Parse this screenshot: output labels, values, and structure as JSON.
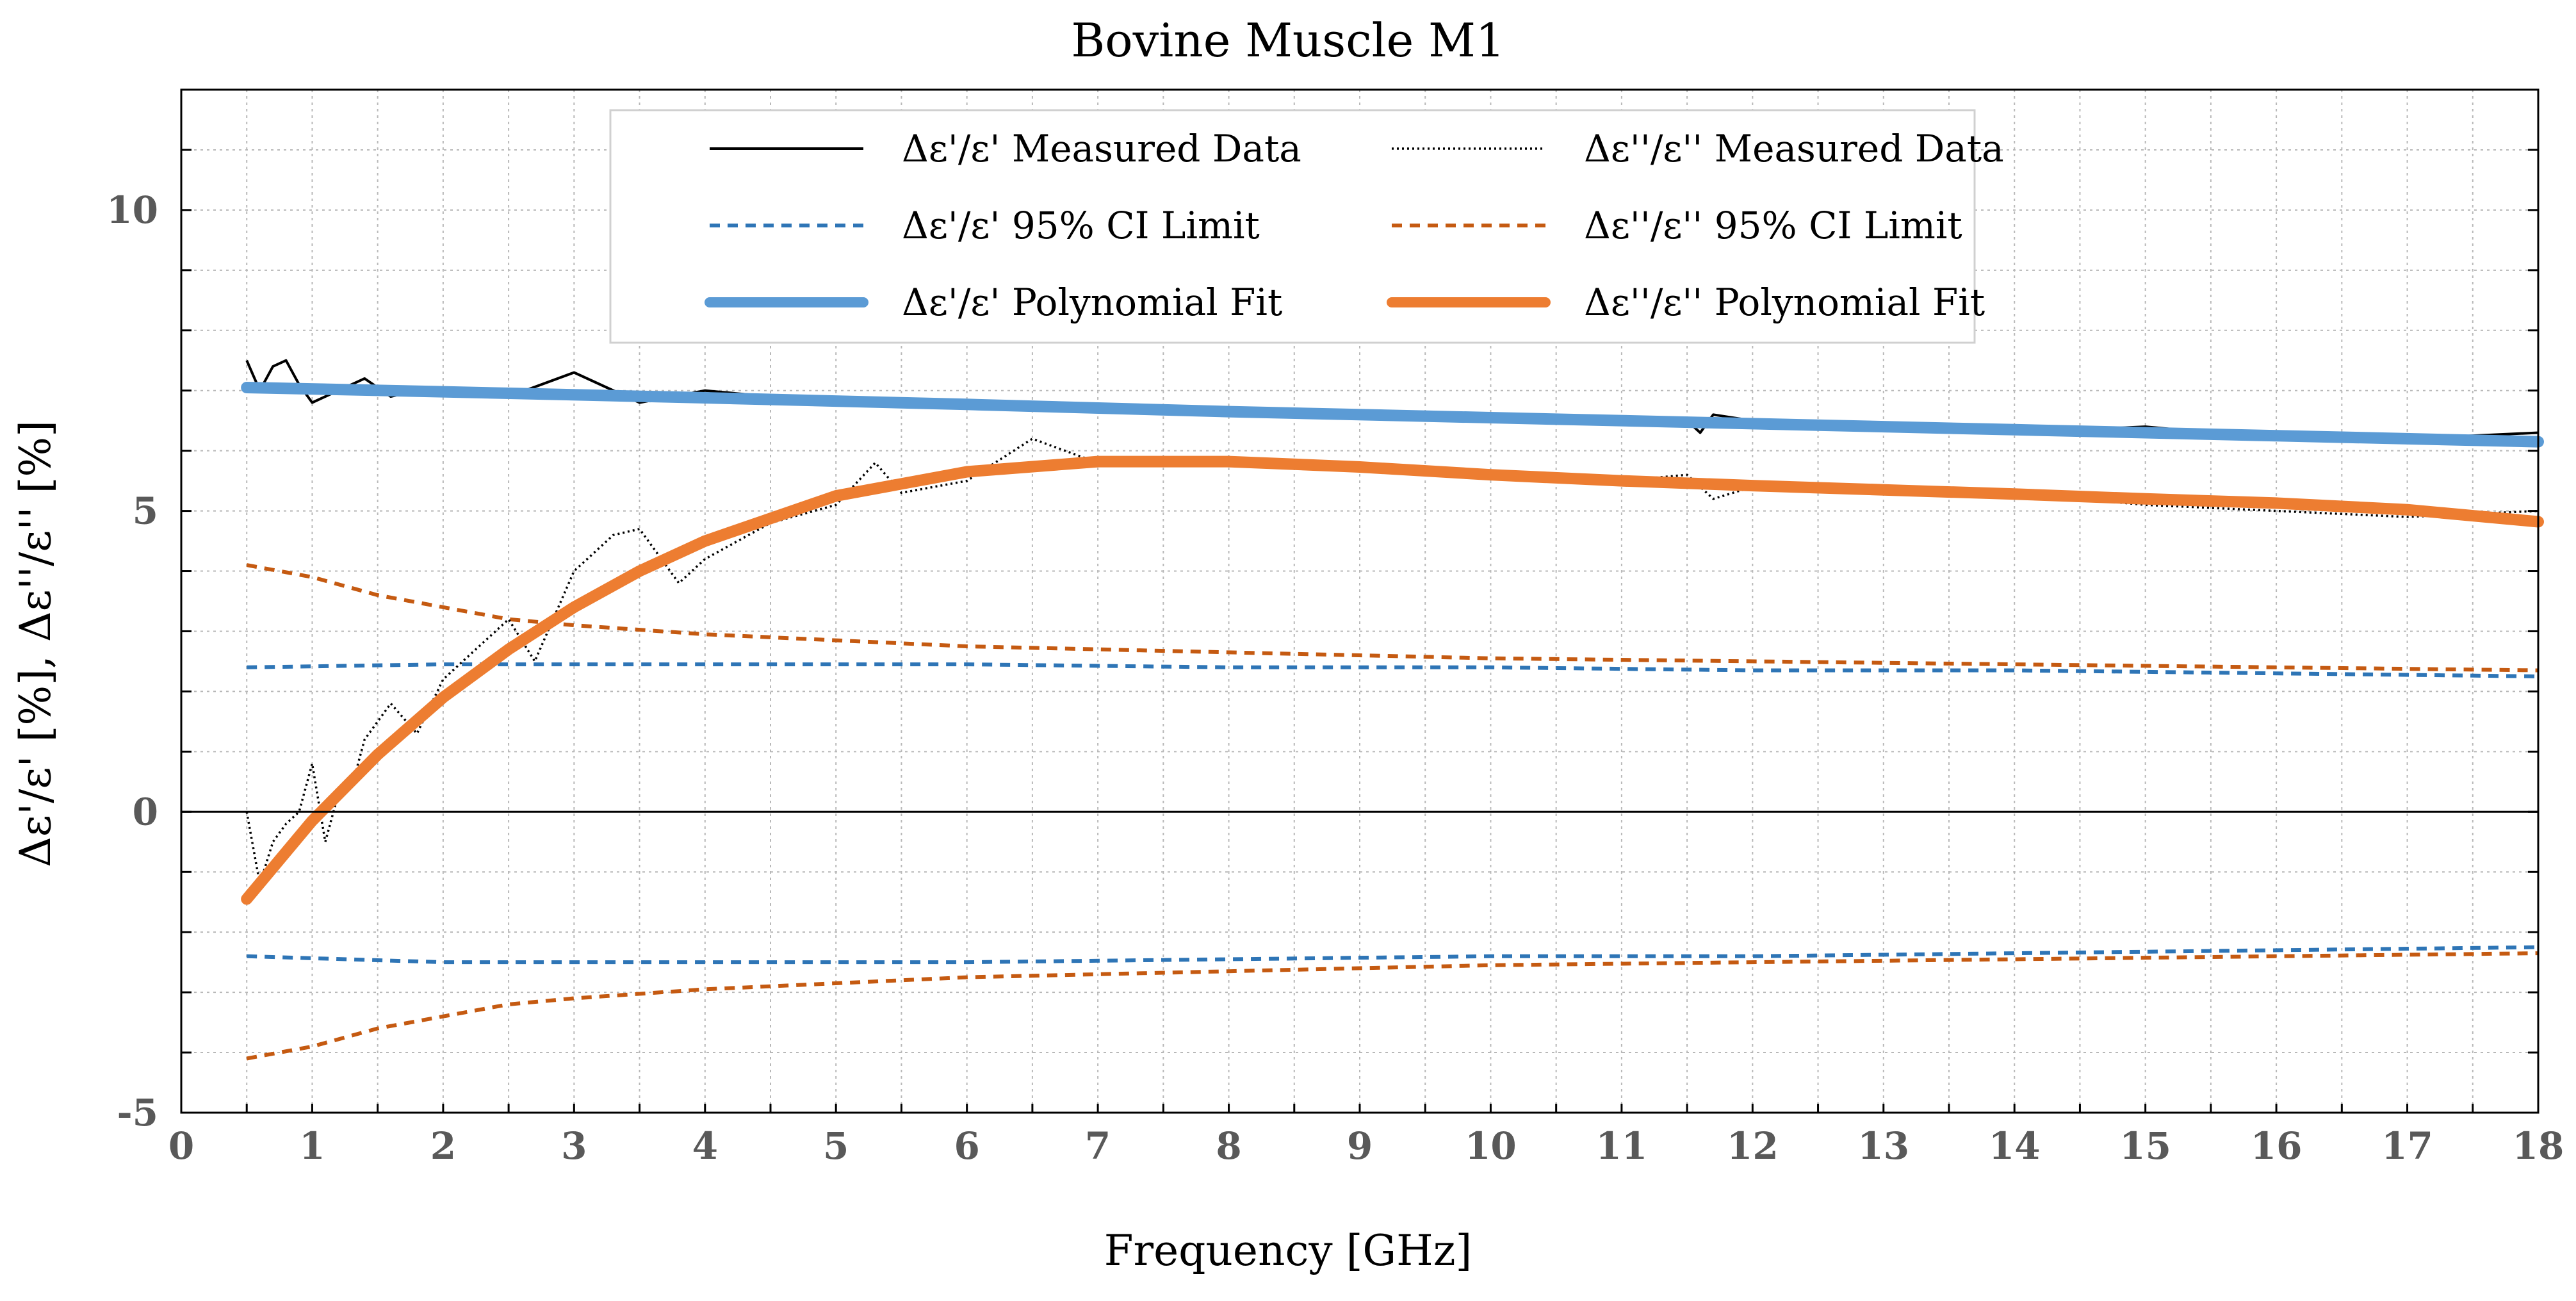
{
  "chart_data": {
    "type": "line",
    "title": "Bovine Muscle M1",
    "xlabel": "Frequency [GHz]",
    "ylabel": "Δε'/ε' [%],  Δε''/ε'' [%]",
    "xlim": [
      0,
      18
    ],
    "ylim": [
      -5,
      12
    ],
    "x_ticks": [
      0,
      1,
      2,
      3,
      4,
      5,
      6,
      7,
      8,
      9,
      10,
      11,
      12,
      13,
      14,
      15,
      16,
      17,
      18
    ],
    "x_tick_labels": [
      "0",
      "1",
      "2",
      "3",
      "4",
      "5",
      "6",
      "7",
      "8",
      "9",
      "10",
      "11",
      "12",
      "13",
      "14",
      "15",
      "16",
      "17",
      "18"
    ],
    "y_ticks": [
      -5,
      0,
      5,
      10
    ],
    "y_tick_labels": [
      "-5",
      "0",
      "5",
      "10"
    ],
    "grid": true,
    "legend_position": "top-center",
    "legend": [
      {
        "label": "Δε'/ε' Measured Data",
        "series": "eps1_measured"
      },
      {
        "label": "Δε''/ε'' Measured Data",
        "series": "eps2_measured"
      },
      {
        "label": "Δε'/ε' 95% CI Limit",
        "series": "eps1_ci"
      },
      {
        "label": "Δε''/ε'' 95% CI Limit",
        "series": "eps2_ci"
      },
      {
        "label": "Δε'/ε' Polynomial Fit",
        "series": "eps1_fit"
      },
      {
        "label": "Δε''/ε'' Polynomial Fit",
        "series": "eps2_fit"
      }
    ],
    "series": [
      {
        "id": "eps1_measured",
        "name": "Δε'/ε' Measured Data",
        "color": "#000000",
        "style": "solid-thin",
        "x": [
          0.5,
          0.6,
          0.7,
          0.8,
          0.9,
          1.0,
          1.2,
          1.4,
          1.6,
          1.8,
          2.0,
          2.5,
          3.0,
          3.5,
          4.0,
          4.5,
          5.0,
          6.0,
          7.0,
          8.0,
          9.0,
          10.0,
          11.0,
          11.5,
          11.6,
          11.7,
          12.0,
          13.0,
          14.0,
          15.0,
          16.0,
          17.0,
          18.0
        ],
        "values": [
          7.5,
          7.0,
          7.4,
          7.5,
          7.1,
          6.8,
          7.0,
          7.2,
          6.9,
          7.0,
          7.0,
          6.9,
          7.3,
          6.8,
          7.0,
          6.9,
          6.8,
          6.8,
          6.7,
          6.7,
          6.6,
          6.6,
          6.5,
          6.5,
          6.3,
          6.6,
          6.5,
          6.4,
          6.3,
          6.4,
          6.2,
          6.2,
          6.3
        ]
      },
      {
        "id": "eps2_measured",
        "name": "Δε''/ε'' Measured Data",
        "color": "#000000",
        "style": "dotted",
        "x": [
          0.5,
          0.6,
          0.7,
          0.8,
          0.9,
          1.0,
          1.1,
          1.2,
          1.3,
          1.4,
          1.5,
          1.6,
          1.8,
          2.0,
          2.2,
          2.5,
          2.7,
          3.0,
          3.3,
          3.5,
          3.8,
          4.0,
          4.5,
          5.0,
          5.3,
          5.5,
          6.0,
          6.5,
          7.0,
          8.0,
          9.0,
          10.0,
          11.0,
          11.5,
          11.7,
          12.0,
          13.0,
          14.0,
          15.0,
          16.0,
          17.0,
          18.0
        ],
        "values": [
          0.0,
          -1.2,
          -0.5,
          -0.2,
          0.0,
          0.8,
          -0.5,
          0.3,
          0.4,
          1.2,
          1.5,
          1.8,
          1.3,
          2.2,
          2.6,
          3.2,
          2.5,
          4.0,
          4.6,
          4.7,
          3.8,
          4.2,
          4.8,
          5.1,
          5.8,
          5.3,
          5.5,
          6.2,
          5.8,
          5.8,
          5.7,
          5.6,
          5.5,
          5.6,
          5.2,
          5.4,
          5.4,
          5.3,
          5.1,
          5.0,
          4.9,
          5.0
        ]
      },
      {
        "id": "eps1_ci_upper",
        "name": "Δε'/ε' 95% CI Limit",
        "color": "#2e75b6",
        "style": "dashed",
        "x": [
          0.5,
          2.0,
          4.0,
          6.0,
          8.0,
          10.0,
          12.0,
          14.0,
          16.0,
          18.0
        ],
        "values": [
          2.4,
          2.45,
          2.45,
          2.45,
          2.4,
          2.4,
          2.35,
          2.35,
          2.3,
          2.25
        ]
      },
      {
        "id": "eps1_ci_lower",
        "name": "Δε'/ε' 95% CI Limit",
        "color": "#2e75b6",
        "style": "dashed",
        "x": [
          0.5,
          2.0,
          4.0,
          6.0,
          8.0,
          10.0,
          12.0,
          14.0,
          16.0,
          18.0
        ],
        "values": [
          -2.4,
          -2.5,
          -2.5,
          -2.5,
          -2.45,
          -2.4,
          -2.4,
          -2.35,
          -2.3,
          -2.25
        ]
      },
      {
        "id": "eps2_ci_upper",
        "name": "Δε''/ε'' 95% CI Limit",
        "color": "#c55a11",
        "style": "dashed",
        "x": [
          0.5,
          1.0,
          1.5,
          2.0,
          2.5,
          3.0,
          4.0,
          5.0,
          6.0,
          8.0,
          10.0,
          12.0,
          14.0,
          16.0,
          18.0
        ],
        "values": [
          4.1,
          3.9,
          3.6,
          3.4,
          3.2,
          3.1,
          2.95,
          2.85,
          2.75,
          2.65,
          2.55,
          2.5,
          2.45,
          2.4,
          2.35
        ]
      },
      {
        "id": "eps2_ci_lower",
        "name": "Δε''/ε'' 95% CI Limit",
        "color": "#c55a11",
        "style": "dashed",
        "x": [
          0.5,
          1.0,
          1.5,
          2.0,
          2.5,
          3.0,
          4.0,
          5.0,
          6.0,
          8.0,
          10.0,
          12.0,
          14.0,
          16.0,
          18.0
        ],
        "values": [
          -4.1,
          -3.9,
          -3.6,
          -3.4,
          -3.2,
          -3.1,
          -2.95,
          -2.85,
          -2.75,
          -2.65,
          -2.55,
          -2.5,
          -2.45,
          -2.4,
          -2.35
        ]
      },
      {
        "id": "eps1_fit",
        "name": "Δε'/ε' Polynomial Fit",
        "color": "#5b9bd5",
        "style": "solid-thick",
        "x": [
          0.5,
          2.0,
          4.0,
          6.0,
          8.0,
          10.0,
          12.0,
          14.0,
          16.0,
          18.0
        ],
        "values": [
          7.05,
          6.98,
          6.88,
          6.77,
          6.65,
          6.55,
          6.45,
          6.35,
          6.25,
          6.15
        ]
      },
      {
        "id": "eps2_fit",
        "name": "Δε''/ε'' Polynomial Fit",
        "color": "#ed7d31",
        "style": "solid-thick",
        "x": [
          0.5,
          1.0,
          1.5,
          2.0,
          2.5,
          3.0,
          3.5,
          4.0,
          5.0,
          6.0,
          7.0,
          8.0,
          9.0,
          10.0,
          11.0,
          12.0,
          13.0,
          14.0,
          15.0,
          16.0,
          17.0,
          18.0
        ],
        "values": [
          -1.45,
          -0.15,
          0.95,
          1.9,
          2.7,
          3.4,
          4.0,
          4.5,
          5.25,
          5.65,
          5.82,
          5.82,
          5.73,
          5.6,
          5.5,
          5.42,
          5.35,
          5.28,
          5.2,
          5.13,
          5.02,
          4.82
        ]
      }
    ]
  }
}
